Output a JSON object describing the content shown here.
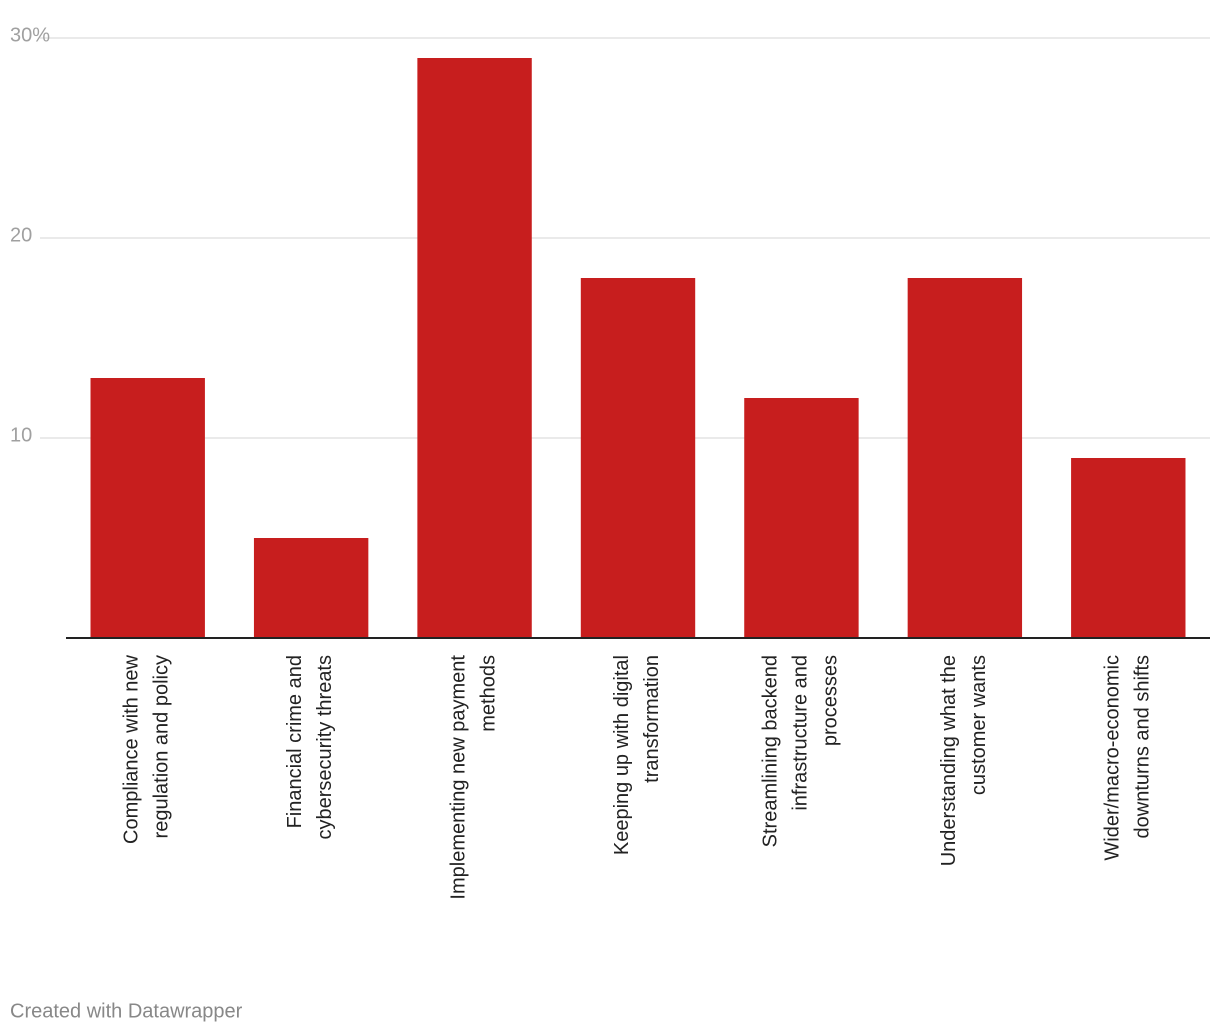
{
  "chart_data": {
    "type": "bar",
    "categories": [
      "Compliance with new regulation and policy",
      "Financial crime and cybersecurity threats",
      "Implementing new payment methods",
      "Keeping up with digital transformation",
      "Streamlining backend infrastructure and processes",
      "Understanding what the customer wants",
      "Wider/macro-economic downturns and shifts"
    ],
    "values": [
      13,
      5,
      29,
      18,
      12,
      18,
      9
    ],
    "color": "#c71e1e",
    "ylim": [
      0,
      30
    ],
    "yticks": [
      10,
      20,
      {
        "value": 30,
        "label": "30%"
      }
    ],
    "grid": true
  },
  "credit": "Created with Datawrapper"
}
